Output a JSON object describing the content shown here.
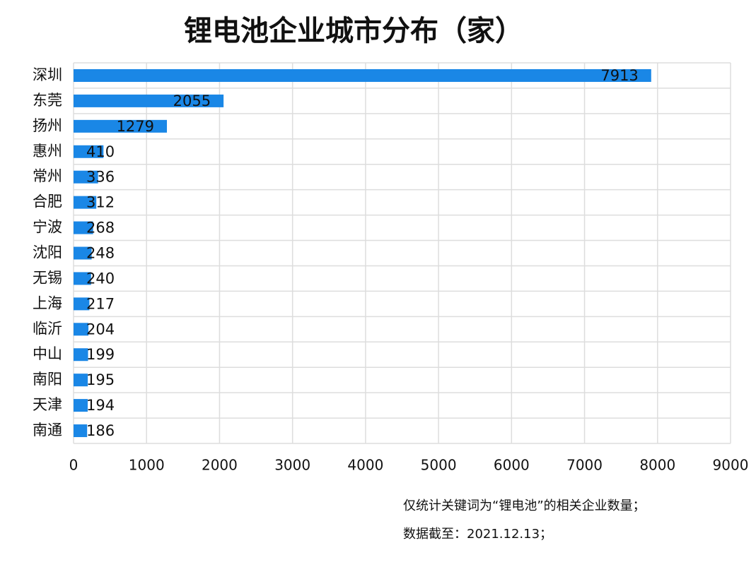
{
  "chart_data": {
    "type": "bar",
    "orientation": "horizontal",
    "title": "锂电池企业城市分布（家）",
    "categories": [
      "深圳",
      "东莞",
      "扬州",
      "惠州",
      "常州",
      "合肥",
      "宁波",
      "沈阳",
      "无锡",
      "上海",
      "临沂",
      "中山",
      "南阳",
      "天津",
      "南通"
    ],
    "values": [
      7913,
      2055,
      1279,
      410,
      336,
      312,
      268,
      248,
      240,
      217,
      204,
      199,
      195,
      194,
      186
    ],
    "color": "#1a87e6",
    "xlim": [
      0,
      9000
    ],
    "xticks": [
      0,
      1000,
      2000,
      3000,
      4000,
      5000,
      6000,
      7000,
      8000,
      9000
    ],
    "grid": true,
    "notes": [
      "仅统计关键词为“锂电池”的相关企业数量；",
      "数据截至：2021.12.13；"
    ]
  }
}
